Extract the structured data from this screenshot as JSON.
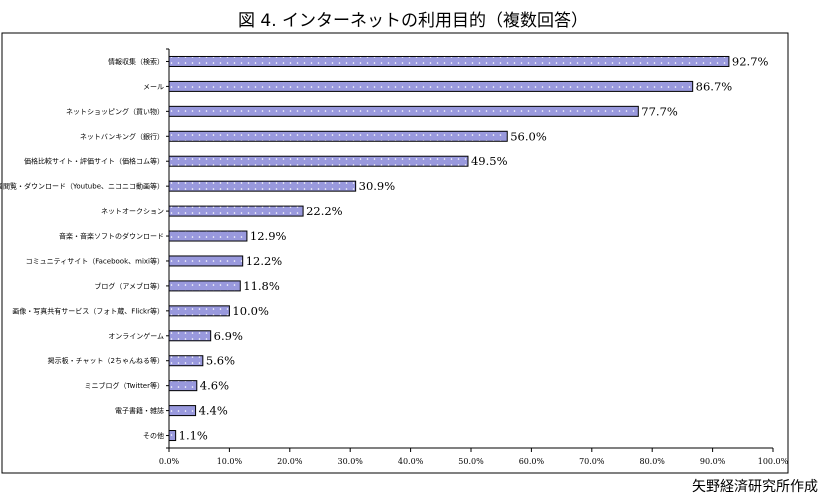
{
  "title": "図 4.  インターネットの利用目的（複数回答）",
  "source": "矢野経済研究所作成",
  "chart_data": {
    "type": "bar",
    "orientation": "horizontal",
    "categories": [
      "情報収集（検索）",
      "メール",
      "ネットショッピング（買い物）",
      "ネットバンキング（銀行）",
      "価格比較サイト・評価サイト（価格コム等）",
      "動画閲覧・ダウンロード（Youtube、ニコニコ動画等）",
      "ネットオークション",
      "音楽・音楽ソフトのダウンロード",
      "コミュニティサイト（Facebook、mixi等）",
      "ブログ（アメブロ等）",
      "画像・写真共有サービス（フォト蔵、Flickr等）",
      "オンラインゲーム",
      "掲示板・チャット（2ちゃんねる等）",
      "ミニブログ（Twitter等）",
      "電子書籍・雑誌",
      "その他"
    ],
    "values": [
      92.7,
      86.7,
      77.7,
      56.0,
      49.5,
      30.9,
      22.2,
      12.9,
      12.2,
      11.8,
      10.0,
      6.9,
      5.6,
      4.6,
      4.4,
      1.1
    ],
    "value_labels": [
      "92.7%",
      "86.7%",
      "77.7%",
      "56.0%",
      "49.5%",
      "30.9%",
      "22.2%",
      "12.9%",
      "12.2%",
      "11.8%",
      "10.0%",
      "6.9%",
      "5.6%",
      "4.6%",
      "4.4%",
      "1.1%"
    ],
    "xlim": [
      0,
      100
    ],
    "xticks": [
      "0.0%",
      "10.0%",
      "20.0%",
      "30.0%",
      "40.0%",
      "50.0%",
      "60.0%",
      "70.0%",
      "80.0%",
      "90.0%",
      "100.0%"
    ],
    "grid": false,
    "legend": "none",
    "bar_color": "#9999dd",
    "bar_border": "#000000",
    "bar_dot_color": "#ffffff"
  }
}
